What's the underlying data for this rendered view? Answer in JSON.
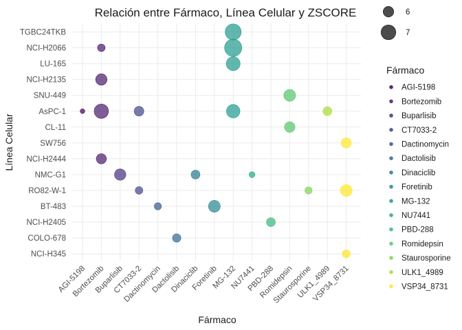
{
  "chart_data": {
    "type": "scatter",
    "title": "Relación entre Fármaco, Línea Celular y ZSCORE",
    "xlabel": "Fármaco",
    "ylabel": "Línea Celular",
    "x_categories": [
      "AGI-5198",
      "Bortezomib",
      "Buparlisib",
      "CT7033-2",
      "Dactinomycin",
      "Dactolisib",
      "Dinaciclib",
      "Foretinib",
      "MG-132",
      "NU7441",
      "PBD-288",
      "Romidepsin",
      "Staurosporine",
      "ULK1_4989",
      "VSP34_8731"
    ],
    "y_categories": [
      "TGBC24TKB",
      "NCI-H2066",
      "LU-165",
      "NCI-H2135",
      "SNU-449",
      "AsPC-1",
      "CL-11",
      "SW756",
      "NCI-H2444",
      "NMC-G1",
      "RO82-W-1",
      "BT-483",
      "NCI-H2405",
      "COLO-678",
      "NCI-H345"
    ],
    "size_legend": {
      "label": "",
      "entries": [
        6,
        7
      ]
    },
    "color_legend": {
      "title": "Fármaco",
      "entries": [
        "AGI-5198",
        "Bortezomib",
        "Buparlisib",
        "CT7033-2",
        "Dactinomycin",
        "Dactolisib",
        "Dinaciclib",
        "Foretinib",
        "MG-132",
        "NU7441",
        "PBD-288",
        "Romidepsin",
        "Staurosporine",
        "ULK1_4989",
        "VSP34_8731"
      ]
    },
    "colors": {
      "AGI-5198": "#440154",
      "Bortezomib": "#481A6C",
      "Buparlisib": "#472F7D",
      "CT7033-2": "#414487",
      "Dactinomycin": "#39568C",
      "Dactolisib": "#31688E",
      "Dinaciclib": "#2A788E",
      "Foretinib": "#23888E",
      "MG-132": "#1F988B",
      "NU7441": "#22A884",
      "PBD-288": "#35B779",
      "Romidepsin": "#54C568",
      "Staurosporine": "#7AD151",
      "ULK1_4989": "#A5DB36",
      "VSP34_8731": "#FDE725"
    },
    "points": [
      {
        "drug": "AGI-5198",
        "cell": "AsPC-1",
        "zscore": 4.6
      },
      {
        "drug": "Bortezomib",
        "cell": "NCI-H2066",
        "zscore": 5.3
      },
      {
        "drug": "Bortezomib",
        "cell": "NCI-H2135",
        "zscore": 6.2
      },
      {
        "drug": "Bortezomib",
        "cell": "AsPC-1",
        "zscore": 6.9
      },
      {
        "drug": "Bortezomib",
        "cell": "NCI-H2444",
        "zscore": 5.9
      },
      {
        "drug": "Buparlisib",
        "cell": "NMC-G1",
        "zscore": 6.2
      },
      {
        "drug": "CT7033-2",
        "cell": "AsPC-1",
        "zscore": 5.8
      },
      {
        "drug": "CT7033-2",
        "cell": "RO82-W-1",
        "zscore": 5.3
      },
      {
        "drug": "Dactinomycin",
        "cell": "BT-483",
        "zscore": 5.2
      },
      {
        "drug": "Dactolisib",
        "cell": "COLO-678",
        "zscore": 5.5
      },
      {
        "drug": "Dinaciclib",
        "cell": "NMC-G1",
        "zscore": 5.6
      },
      {
        "drug": "Foretinib",
        "cell": "BT-483",
        "zscore": 6.3
      },
      {
        "drug": "MG-132",
        "cell": "TGBC24TKB",
        "zscore": 7.3
      },
      {
        "drug": "MG-132",
        "cell": "NCI-H2066",
        "zscore": 7.6
      },
      {
        "drug": "MG-132",
        "cell": "LU-165",
        "zscore": 6.8
      },
      {
        "drug": "MG-132",
        "cell": "AsPC-1",
        "zscore": 6.7
      },
      {
        "drug": "NU7441",
        "cell": "NMC-G1",
        "zscore": 4.9
      },
      {
        "drug": "PBD-288",
        "cell": "NCI-H2405",
        "zscore": 5.6
      },
      {
        "drug": "Romidepsin",
        "cell": "SNU-449",
        "zscore": 6.3
      },
      {
        "drug": "Romidepsin",
        "cell": "CL-11",
        "zscore": 6.0
      },
      {
        "drug": "Staurosporine",
        "cell": "RO82-W-1",
        "zscore": 5.2
      },
      {
        "drug": "ULK1_4989",
        "cell": "AsPC-1",
        "zscore": 5.6
      },
      {
        "drug": "VSP34_8731",
        "cell": "SW756",
        "zscore": 5.9
      },
      {
        "drug": "VSP34_8731",
        "cell": "RO82-W-1",
        "zscore": 6.3
      },
      {
        "drug": "VSP34_8731",
        "cell": "NCI-H345",
        "zscore": 5.4
      }
    ],
    "point_alpha": 0.7,
    "grid": true,
    "legend_position": "right"
  }
}
